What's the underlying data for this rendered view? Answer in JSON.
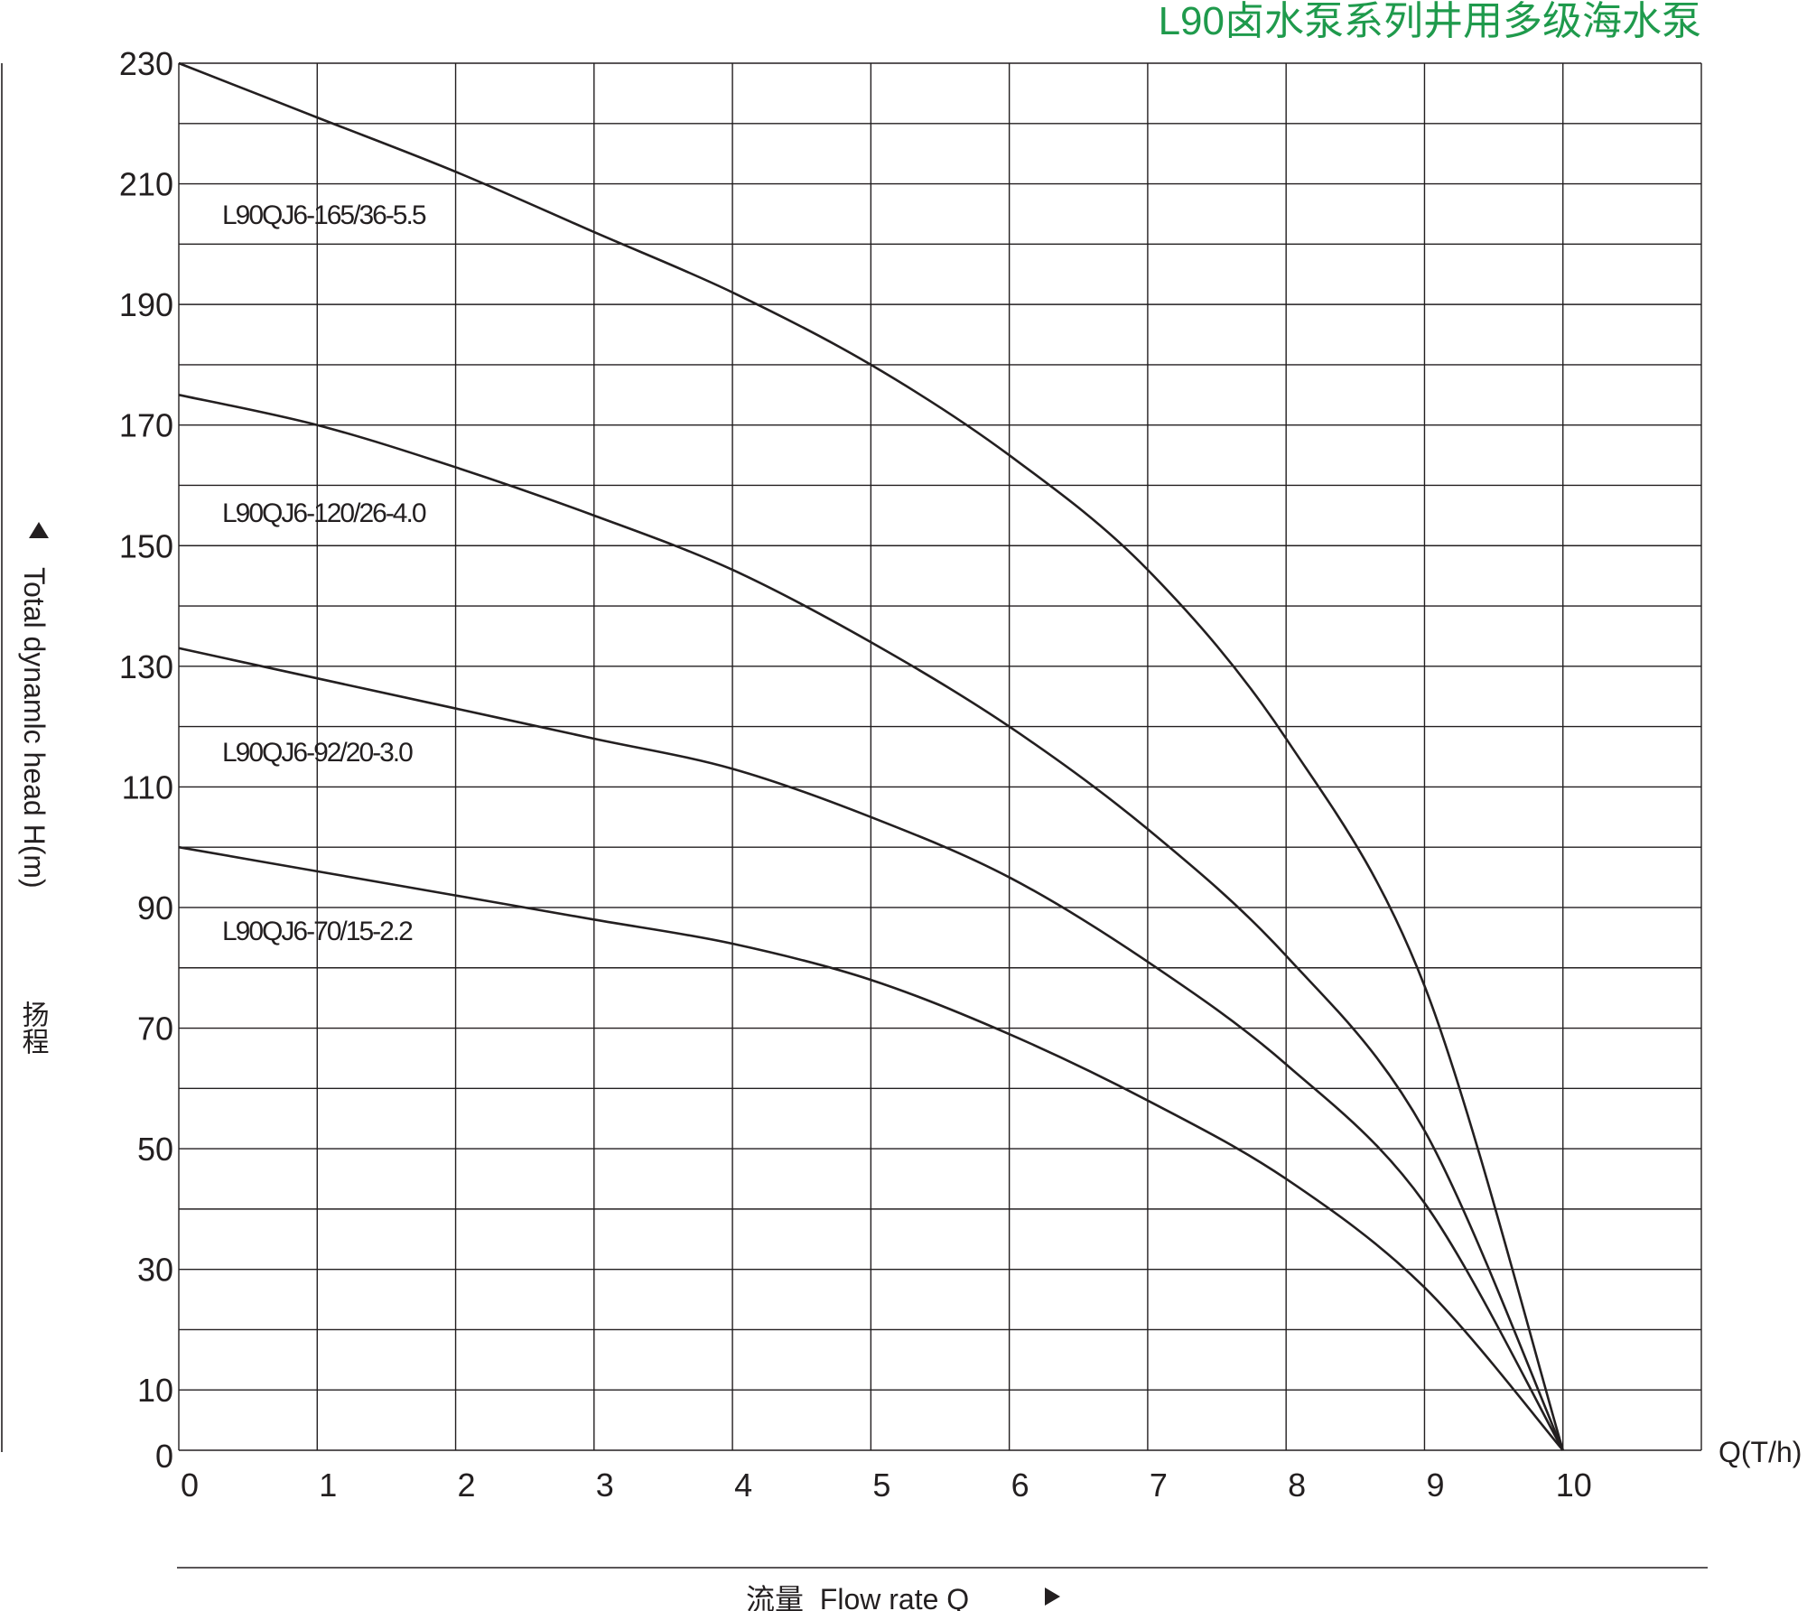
{
  "chart_data": {
    "type": "line",
    "title": "L90卤水泵系列井用多级海水泵",
    "xlabel": "流量  Flow rate Q",
    "x_unit_label": "Q(T/h)",
    "ylabel": "Total dynamlc head H(m)",
    "ylabel_cn": "扬程",
    "xlim": [
      0,
      11
    ],
    "ylim": [
      0,
      230
    ],
    "x_ticks": [
      0,
      1,
      2,
      3,
      4,
      5,
      6,
      7,
      8,
      9,
      10
    ],
    "y_ticks": [
      0,
      10,
      30,
      50,
      70,
      90,
      110,
      130,
      150,
      170,
      190,
      210,
      230
    ],
    "grid": true,
    "x_grid_step": 1,
    "y_grid_step": 10,
    "series": [
      {
        "name": "L90QJ6-165/36-5.5",
        "x": [
          0,
          1,
          2,
          3,
          4,
          5,
          6,
          7,
          8,
          9,
          10
        ],
        "y": [
          230,
          221,
          212,
          202,
          192,
          180,
          165,
          146,
          118,
          77,
          0
        ]
      },
      {
        "name": "L90QJ6-120/26-4.0",
        "x": [
          0,
          1,
          2,
          3,
          4,
          5,
          6,
          7,
          8,
          9,
          10
        ],
        "y": [
          175,
          170,
          163,
          155,
          146,
          134,
          120,
          103,
          82,
          53,
          0
        ]
      },
      {
        "name": "L90QJ6-92/20-3.0",
        "x": [
          0,
          1,
          2,
          3,
          4,
          5,
          6,
          7,
          8,
          9,
          10
        ],
        "y": [
          133,
          128,
          123,
          118,
          113,
          105,
          95,
          81,
          64,
          41,
          0
        ]
      },
      {
        "name": "L90QJ6-70/15-2.2",
        "x": [
          0,
          1,
          2,
          3,
          4,
          5,
          6,
          7,
          8,
          9,
          10
        ],
        "y": [
          100,
          96,
          92,
          88,
          84,
          78,
          69,
          58,
          45,
          27,
          0
        ]
      }
    ]
  }
}
